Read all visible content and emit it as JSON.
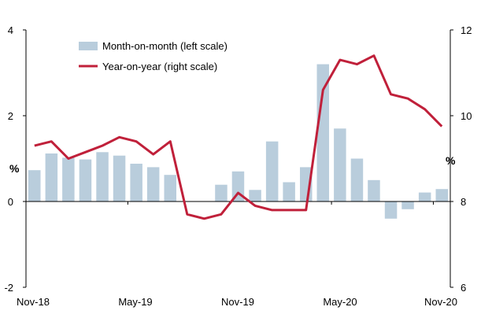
{
  "chart_data": {
    "type": "bar+line",
    "title": "",
    "categories": [
      "Nov-18",
      "Dec-18",
      "Jan-19",
      "Feb-19",
      "Mar-19",
      "Apr-19",
      "May-19",
      "Jun-19",
      "Jul-19",
      "Aug-19",
      "Sep-19",
      "Oct-19",
      "Nov-19",
      "Dec-19",
      "Jan-20",
      "Feb-20",
      "Mar-20",
      "Apr-20",
      "May-20",
      "Jun-20",
      "Jul-20",
      "Aug-20",
      "Sep-20",
      "Oct-20",
      "Nov-20"
    ],
    "x_tick_labels": [
      "Nov-18",
      "May-19",
      "Nov-19",
      "May-20",
      "Nov-20"
    ],
    "left_axis": {
      "label": "%",
      "ylim": [
        -2,
        4
      ],
      "ticks": [
        "-2",
        "0",
        "2",
        "4"
      ]
    },
    "right_axis": {
      "label": "%",
      "ylim": [
        6,
        12
      ],
      "ticks": [
        "6",
        "8",
        "10",
        "12"
      ]
    },
    "series": [
      {
        "name": "Month-on-month (left scale)",
        "type": "bar",
        "axis": "left",
        "color": "#b9cddc",
        "values": [
          0.73,
          1.12,
          1.02,
          0.98,
          1.15,
          1.07,
          0.88,
          0.8,
          0.62,
          0.0,
          0.0,
          0.39,
          0.7,
          0.27,
          1.4,
          0.45,
          0.8,
          3.2,
          1.7,
          1.0,
          0.5,
          -0.4,
          -0.18,
          0.21,
          0.29
        ]
      },
      {
        "name": "Year-on-year (right scale)",
        "type": "line",
        "axis": "right",
        "color": "#c0203a",
        "values": [
          9.3,
          9.4,
          9.0,
          9.15,
          9.3,
          9.5,
          9.4,
          9.1,
          9.4,
          7.7,
          7.6,
          7.7,
          8.2,
          7.9,
          7.8,
          7.8,
          7.8,
          10.6,
          11.3,
          11.2,
          11.4,
          10.5,
          10.4,
          10.15,
          9.75
        ]
      }
    ],
    "legend_position": "top-left"
  }
}
